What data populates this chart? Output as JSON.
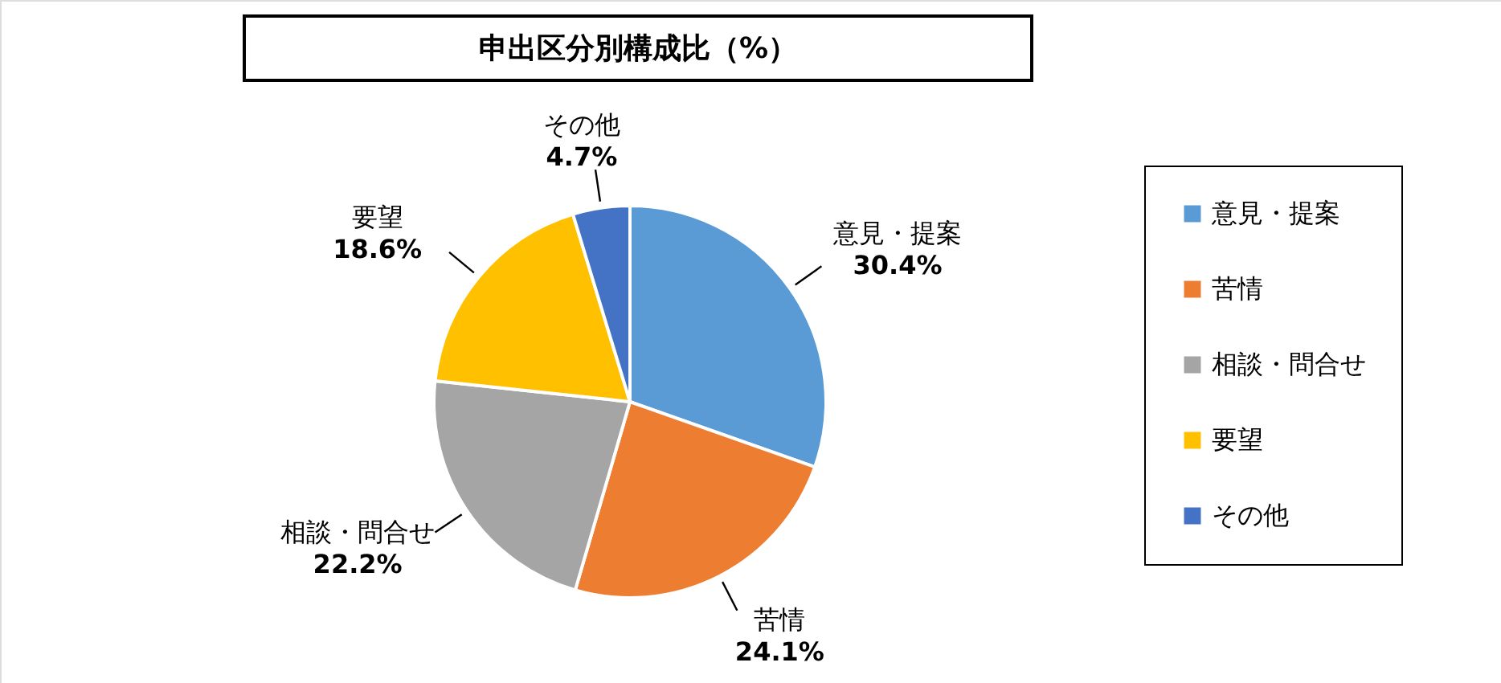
{
  "chart_data": {
    "type": "pie",
    "title": "申出区分別構成比（%）",
    "categories": [
      "意見・提案",
      "苦情",
      "相談・問合せ",
      "要望",
      "その他"
    ],
    "values": [
      30.4,
      24.1,
      22.2,
      18.6,
      4.7
    ],
    "colors": [
      "#5b9bd5",
      "#ed7d31",
      "#a5a5a5",
      "#ffc000",
      "#4472c4"
    ],
    "value_labels": [
      "30.4%",
      "24.1%",
      "22.2%",
      "18.6%",
      "4.7%"
    ],
    "legend": "right"
  }
}
